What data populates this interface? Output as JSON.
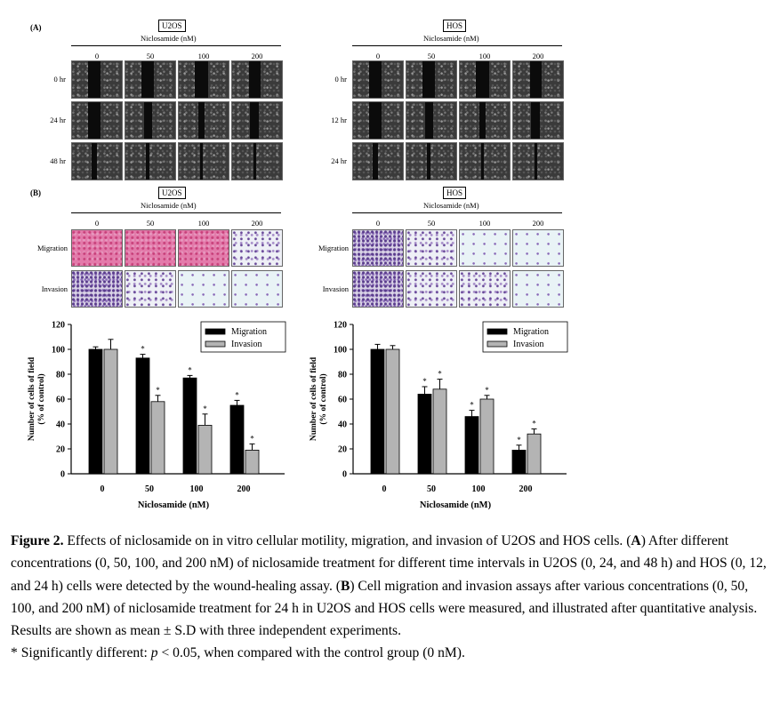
{
  "panel_a": {
    "letter": "(A)",
    "left": {
      "cell": "U2OS",
      "drug": "Niclosamide (nM)",
      "concs": [
        "0",
        "50",
        "100",
        "200"
      ],
      "times": [
        "0 hr",
        "24 hr",
        "48 hr"
      ]
    },
    "right": {
      "cell": "HOS",
      "drug": "Niclosamide (nM)",
      "concs": [
        "0",
        "50",
        "100",
        "200"
      ],
      "times": [
        "0 hr",
        "12 hr",
        "24 hr"
      ]
    }
  },
  "panel_b": {
    "letter": "(B)",
    "left": {
      "cell": "U2OS",
      "drug": "Niclosamide (nM)",
      "concs": [
        "0",
        "50",
        "100",
        "200"
      ],
      "rows": [
        "Migration",
        "Invasion"
      ]
    },
    "right": {
      "cell": "HOS",
      "drug": "Niclosamide (nM)",
      "concs": [
        "0",
        "50",
        "100",
        "200"
      ],
      "rows": [
        "Migration",
        "Invasion"
      ]
    }
  },
  "chart_data": [
    {
      "type": "bar",
      "categories": [
        "0",
        "50",
        "100",
        "200"
      ],
      "xlabel": "Niclosamide (nM)",
      "ylabel": "Number of cells of field (% of control)",
      "ylim": [
        0,
        120
      ],
      "yticks": [
        "0",
        "20",
        "40",
        "60",
        "80",
        "100",
        "120"
      ],
      "legend_position": "top-right",
      "series": [
        {
          "name": "Migration",
          "color": "#000000",
          "values": [
            100,
            93,
            77,
            55
          ],
          "errors": [
            2,
            3,
            2,
            4
          ],
          "significant": [
            false,
            true,
            true,
            true
          ]
        },
        {
          "name": "Invasion",
          "color": "#b4b4b4",
          "values": [
            100,
            58,
            39,
            19
          ],
          "errors": [
            8,
            5,
            9,
            5
          ],
          "significant": [
            false,
            true,
            true,
            true
          ]
        }
      ],
      "significance_mark": "*"
    },
    {
      "type": "bar",
      "categories": [
        "0",
        "50",
        "100",
        "200"
      ],
      "xlabel": "Niclosamide (nM)",
      "ylabel": "Number of cells of field (% of control)",
      "ylim": [
        0,
        120
      ],
      "yticks": [
        "0",
        "20",
        "40",
        "60",
        "80",
        "100",
        "120"
      ],
      "legend_position": "top-right",
      "series": [
        {
          "name": "Migration",
          "color": "#000000",
          "values": [
            100,
            64,
            46,
            19
          ],
          "errors": [
            4,
            6,
            5,
            4
          ],
          "significant": [
            false,
            true,
            true,
            true
          ]
        },
        {
          "name": "Invasion",
          "color": "#b4b4b4",
          "values": [
            100,
            68,
            60,
            32
          ],
          "errors": [
            3,
            8,
            3,
            4
          ],
          "significant": [
            false,
            true,
            true,
            true
          ]
        }
      ],
      "significance_mark": "*"
    }
  ],
  "caption": {
    "label": "Figure 2.",
    "intro": " Effects of niclosamide on in vitro cellular motility, migration, and invasion of U2OS and HOS cells. (",
    "a_letter": "A",
    "a_text": ") After different concentrations (0, 50, 100, and 200 nM) of niclosamide treatment for different time intervals in U2OS (0, 24, and 48 h) and HOS (0, 12, and 24 h) cells were detected by the wound-healing assay. (",
    "b_letter": "B",
    "b_text": ") Cell migration and invasion assays after various concentrations (0, 50, 100, and 200 nM) of niclosamide treatment for 24 h in U2OS and HOS cells were measured, and illustrated after quantitative analysis. Results are shown as mean ± S.D with three independent experiments.",
    "note_pre": "* Significantly different: ",
    "note_p": "p",
    "note_post": " < 0.05, when compared with the control group (0 nM)."
  }
}
